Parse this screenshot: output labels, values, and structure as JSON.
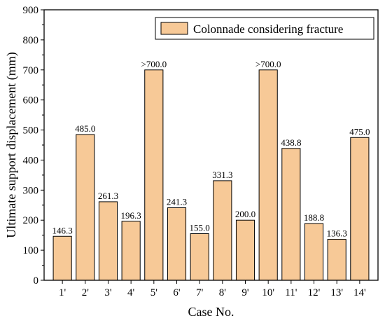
{
  "chart_data": {
    "type": "bar",
    "categories": [
      "1'",
      "2'",
      "3'",
      "4'",
      "5'",
      "6'",
      "7'",
      "8'",
      "9'",
      "10'",
      "11'",
      "12'",
      "13'",
      "14'"
    ],
    "series": [
      {
        "name": "Colonnade considering fracture",
        "values": [
          146.3,
          485.0,
          261.3,
          196.3,
          700.0,
          241.3,
          155.0,
          331.3,
          200.0,
          700.0,
          438.8,
          188.8,
          136.3,
          475.0
        ],
        "labels": [
          "146.3",
          "485.0",
          "261.3",
          "196.3",
          ">700.0",
          "241.3",
          "155.0",
          "331.3",
          "200.0",
          ">700.0",
          "438.8",
          "188.8",
          "136.3",
          "475.0"
        ]
      }
    ],
    "xlabel": "Case No.",
    "ylabel": "Ultimate support displacement (mm)",
    "ylim": [
      0,
      900
    ],
    "yticks": [
      0,
      100,
      200,
      300,
      400,
      500,
      600,
      700,
      800,
      900
    ],
    "grid": false,
    "legend_position": "top-right",
    "colors": {
      "bar_fill": "#f7c997",
      "bar_stroke": "#000000",
      "axis": "#000000"
    }
  }
}
